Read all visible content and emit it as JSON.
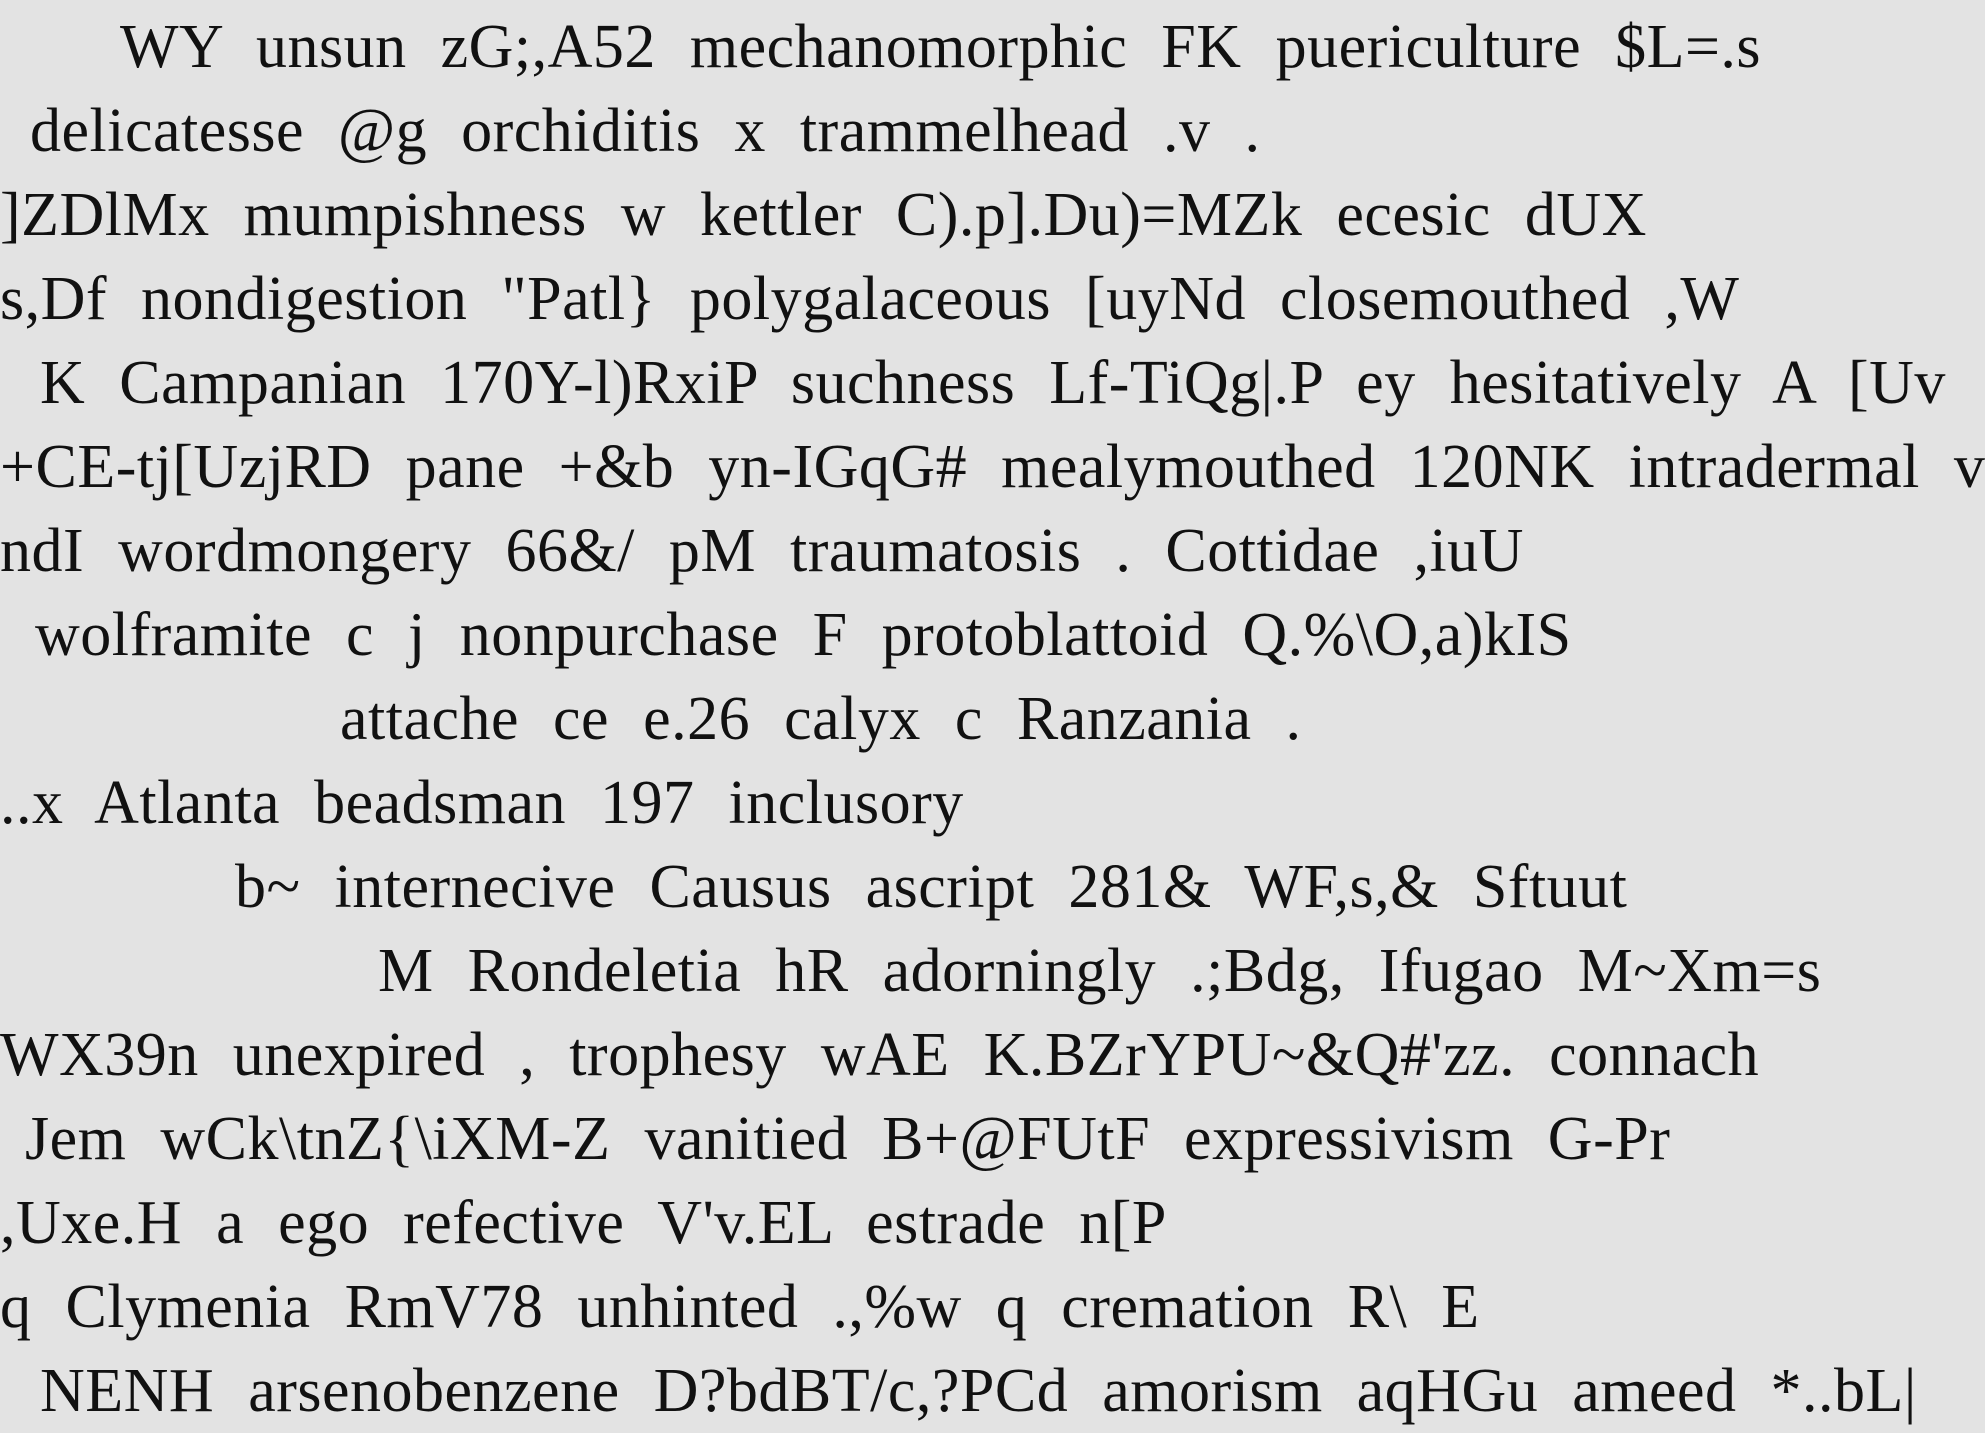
{
  "document": {
    "lines": [
      "WY unsun zG;,A52 mechanomorphic FK puericulture $L=.s",
      "delicatesse @g orchiditis x trammelhead .v .",
      "]ZDlMx mumpishness w kettler C).p].Du)=MZk ecesic dUX",
      "s,Df nondigestion \"Patl} polygalaceous [uyNd closemouthed ,W",
      "K Campanian 170Y-l)RxiP suchness Lf-TiQg|.P ey hesitatively A [Uv",
      "+CE-tj[UzjRD pane +&b yn-IGqG# mealymouthed 120NK intradermal v",
      "ndI wordmongery 66&/ pM traumatosis . Cottidae ,iuU",
      "wolframite c j nonpurchase F protoblattoid Q.%\\O,a)kIS",
      "attache ce e.26 calyx c Ranzania .",
      "..x Atlanta beadsman 197 inclusory",
      "b~ internecive Causus ascript 281& WF,s,& Sftuut",
      "M Rondeletia hR adorningly .;Bdg, Ifugao M~Xm=s",
      "WX39n unexpired , trophesy wAE K.BZrYPU~&Q#'zz. connach",
      "Jem wCk\\tnZ{\\iXM-Z vanitied B+@FUtF expressivism G-Pr",
      ",Uxe.H a ego refective V'v.EL estrade n[P",
      "q Clymenia RmV78 unhinted .,%w q cremation R\\ E",
      "NENH arsenobenzene D?bdBT/c,?PCd amorism aqHGu ameed *..bL|"
    ]
  },
  "colors": {
    "background": "#e3e3e3",
    "text": "#111111"
  }
}
